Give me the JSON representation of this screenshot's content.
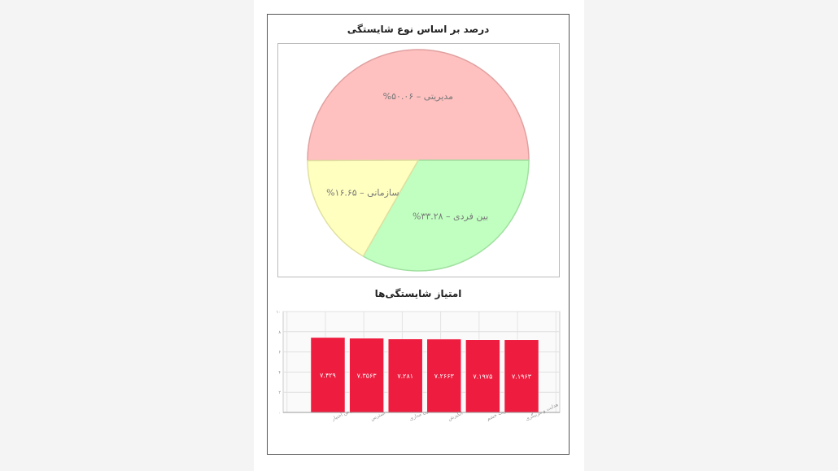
{
  "chart_data": [
    {
      "type": "pie",
      "title": "درصد بر اساس نوع شایستگی",
      "slices": [
        {
          "name": "مدیریتی",
          "value": 50.06,
          "label": "مدیریتی – ۵۰.۰۶%",
          "color": "#ffc0c0"
        },
        {
          "name": "بین فردی",
          "value": 33.28,
          "label": "بین فردی – ۳۳.۲۸%",
          "color": "#c0ffc0"
        },
        {
          "name": "سازمانی",
          "value": 16.65,
          "label": "سازمانی – ۱۶.۶۵%",
          "color": "#ffffc0"
        }
      ]
    },
    {
      "type": "bar",
      "title": "امتیاز شایستگی‌ها",
      "categories": [
        "تفویض اختیار",
        "مدیریت استرس",
        "قانون مداری",
        "انگیزش",
        "مدیریت خشم",
        "هدایت و مربیگری"
      ],
      "values": [
        7.429,
        7.3563,
        7.281,
        7.2663,
        7.1975,
        7.1963
      ],
      "value_labels": [
        "۷.۴۲۹",
        "۷.۳۵۶۳",
        "۷.۲۸۱",
        "۷.۲۶۶۳",
        "۷.۱۹۷۵",
        "۷.۱۹۶۳"
      ],
      "ylim": [
        0,
        10
      ],
      "yticks": [
        0,
        2,
        4,
        6,
        8,
        10
      ],
      "ytick_labels": [
        "۰",
        "۲",
        "۴",
        "۶",
        "۸",
        "۱۰"
      ],
      "grid": true,
      "bar_color": "#ee1c3f"
    }
  ]
}
